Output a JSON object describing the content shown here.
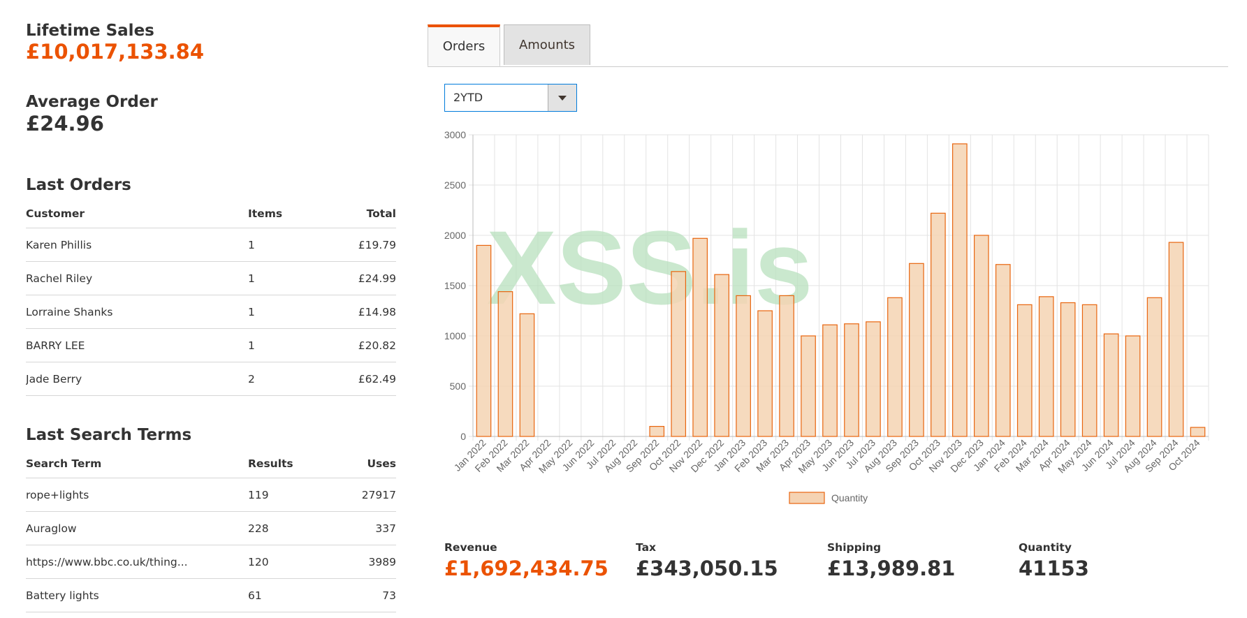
{
  "lifetime_sales": {
    "label": "Lifetime Sales",
    "value": "£10,017,133.84"
  },
  "average_order": {
    "label": "Average Order",
    "value": "£24.96"
  },
  "last_orders": {
    "title": "Last Orders",
    "columns": [
      "Customer",
      "Items",
      "Total"
    ],
    "rows": [
      [
        "Karen Phillis",
        "1",
        "£19.79"
      ],
      [
        "Rachel Riley",
        "1",
        "£24.99"
      ],
      [
        "Lorraine Shanks",
        "1",
        "£14.98"
      ],
      [
        "BARRY LEE",
        "1",
        "£20.82"
      ],
      [
        "Jade Berry",
        "2",
        "£62.49"
      ]
    ]
  },
  "last_search_terms": {
    "title": "Last Search Terms",
    "columns": [
      "Search Term",
      "Results",
      "Uses"
    ],
    "rows": [
      [
        "rope+lights",
        "119",
        "27917"
      ],
      [
        "Auraglow",
        "228",
        "337"
      ],
      [
        "https://www.bbc.co.uk/thing...",
        "120",
        "3989"
      ],
      [
        "Battery lights",
        "61",
        "73"
      ]
    ]
  },
  "tabs": {
    "orders": "Orders",
    "amounts": "Amounts"
  },
  "period_select": {
    "value": "2YTD"
  },
  "watermark": "XSS.is",
  "totals": [
    {
      "label": "Revenue",
      "value": "£1,692,434.75",
      "accent": true
    },
    {
      "label": "Tax",
      "value": "£343,050.15",
      "accent": false
    },
    {
      "label": "Shipping",
      "value": "£13,989.81",
      "accent": false
    },
    {
      "label": "Quantity",
      "value": "41153",
      "accent": false
    }
  ],
  "colors": {
    "accent": "#eb5202",
    "bar_fill": "#f5d3b3",
    "bar_stroke": "#e8650e",
    "watermark": "#b8e0bd"
  },
  "chart_data": {
    "type": "bar",
    "categories": [
      "Jan 2022",
      "Feb 2022",
      "Mar 2022",
      "Apr 2022",
      "May 2022",
      "Jun 2022",
      "Jul 2022",
      "Aug 2022",
      "Sep 2022",
      "Oct 2022",
      "Nov 2022",
      "Dec 2022",
      "Jan 2023",
      "Feb 2023",
      "Mar 2023",
      "Apr 2023",
      "May 2023",
      "Jun 2023",
      "Jul 2023",
      "Aug 2023",
      "Sep 2023",
      "Oct 2023",
      "Nov 2023",
      "Dec 2023",
      "Jan 2024",
      "Feb 2024",
      "Mar 2024",
      "Apr 2024",
      "May 2024",
      "Jun 2024",
      "Jul 2024",
      "Aug 2024",
      "Sep 2024",
      "Oct 2024"
    ],
    "series": [
      {
        "name": "Quantity",
        "values": [
          1900,
          1440,
          1220,
          0,
          0,
          0,
          0,
          0,
          100,
          1640,
          1970,
          1610,
          1400,
          1250,
          1400,
          1000,
          1110,
          1120,
          1140,
          1380,
          1720,
          2220,
          2910,
          2000,
          1710,
          1310,
          1390,
          1330,
          1310,
          1020,
          1000,
          1380,
          1930,
          90
        ]
      }
    ],
    "ylim": [
      0,
      3000
    ],
    "yticks": [
      0,
      500,
      1000,
      1500,
      2000,
      2500,
      3000
    ],
    "grid": true,
    "legend": "bottom"
  }
}
